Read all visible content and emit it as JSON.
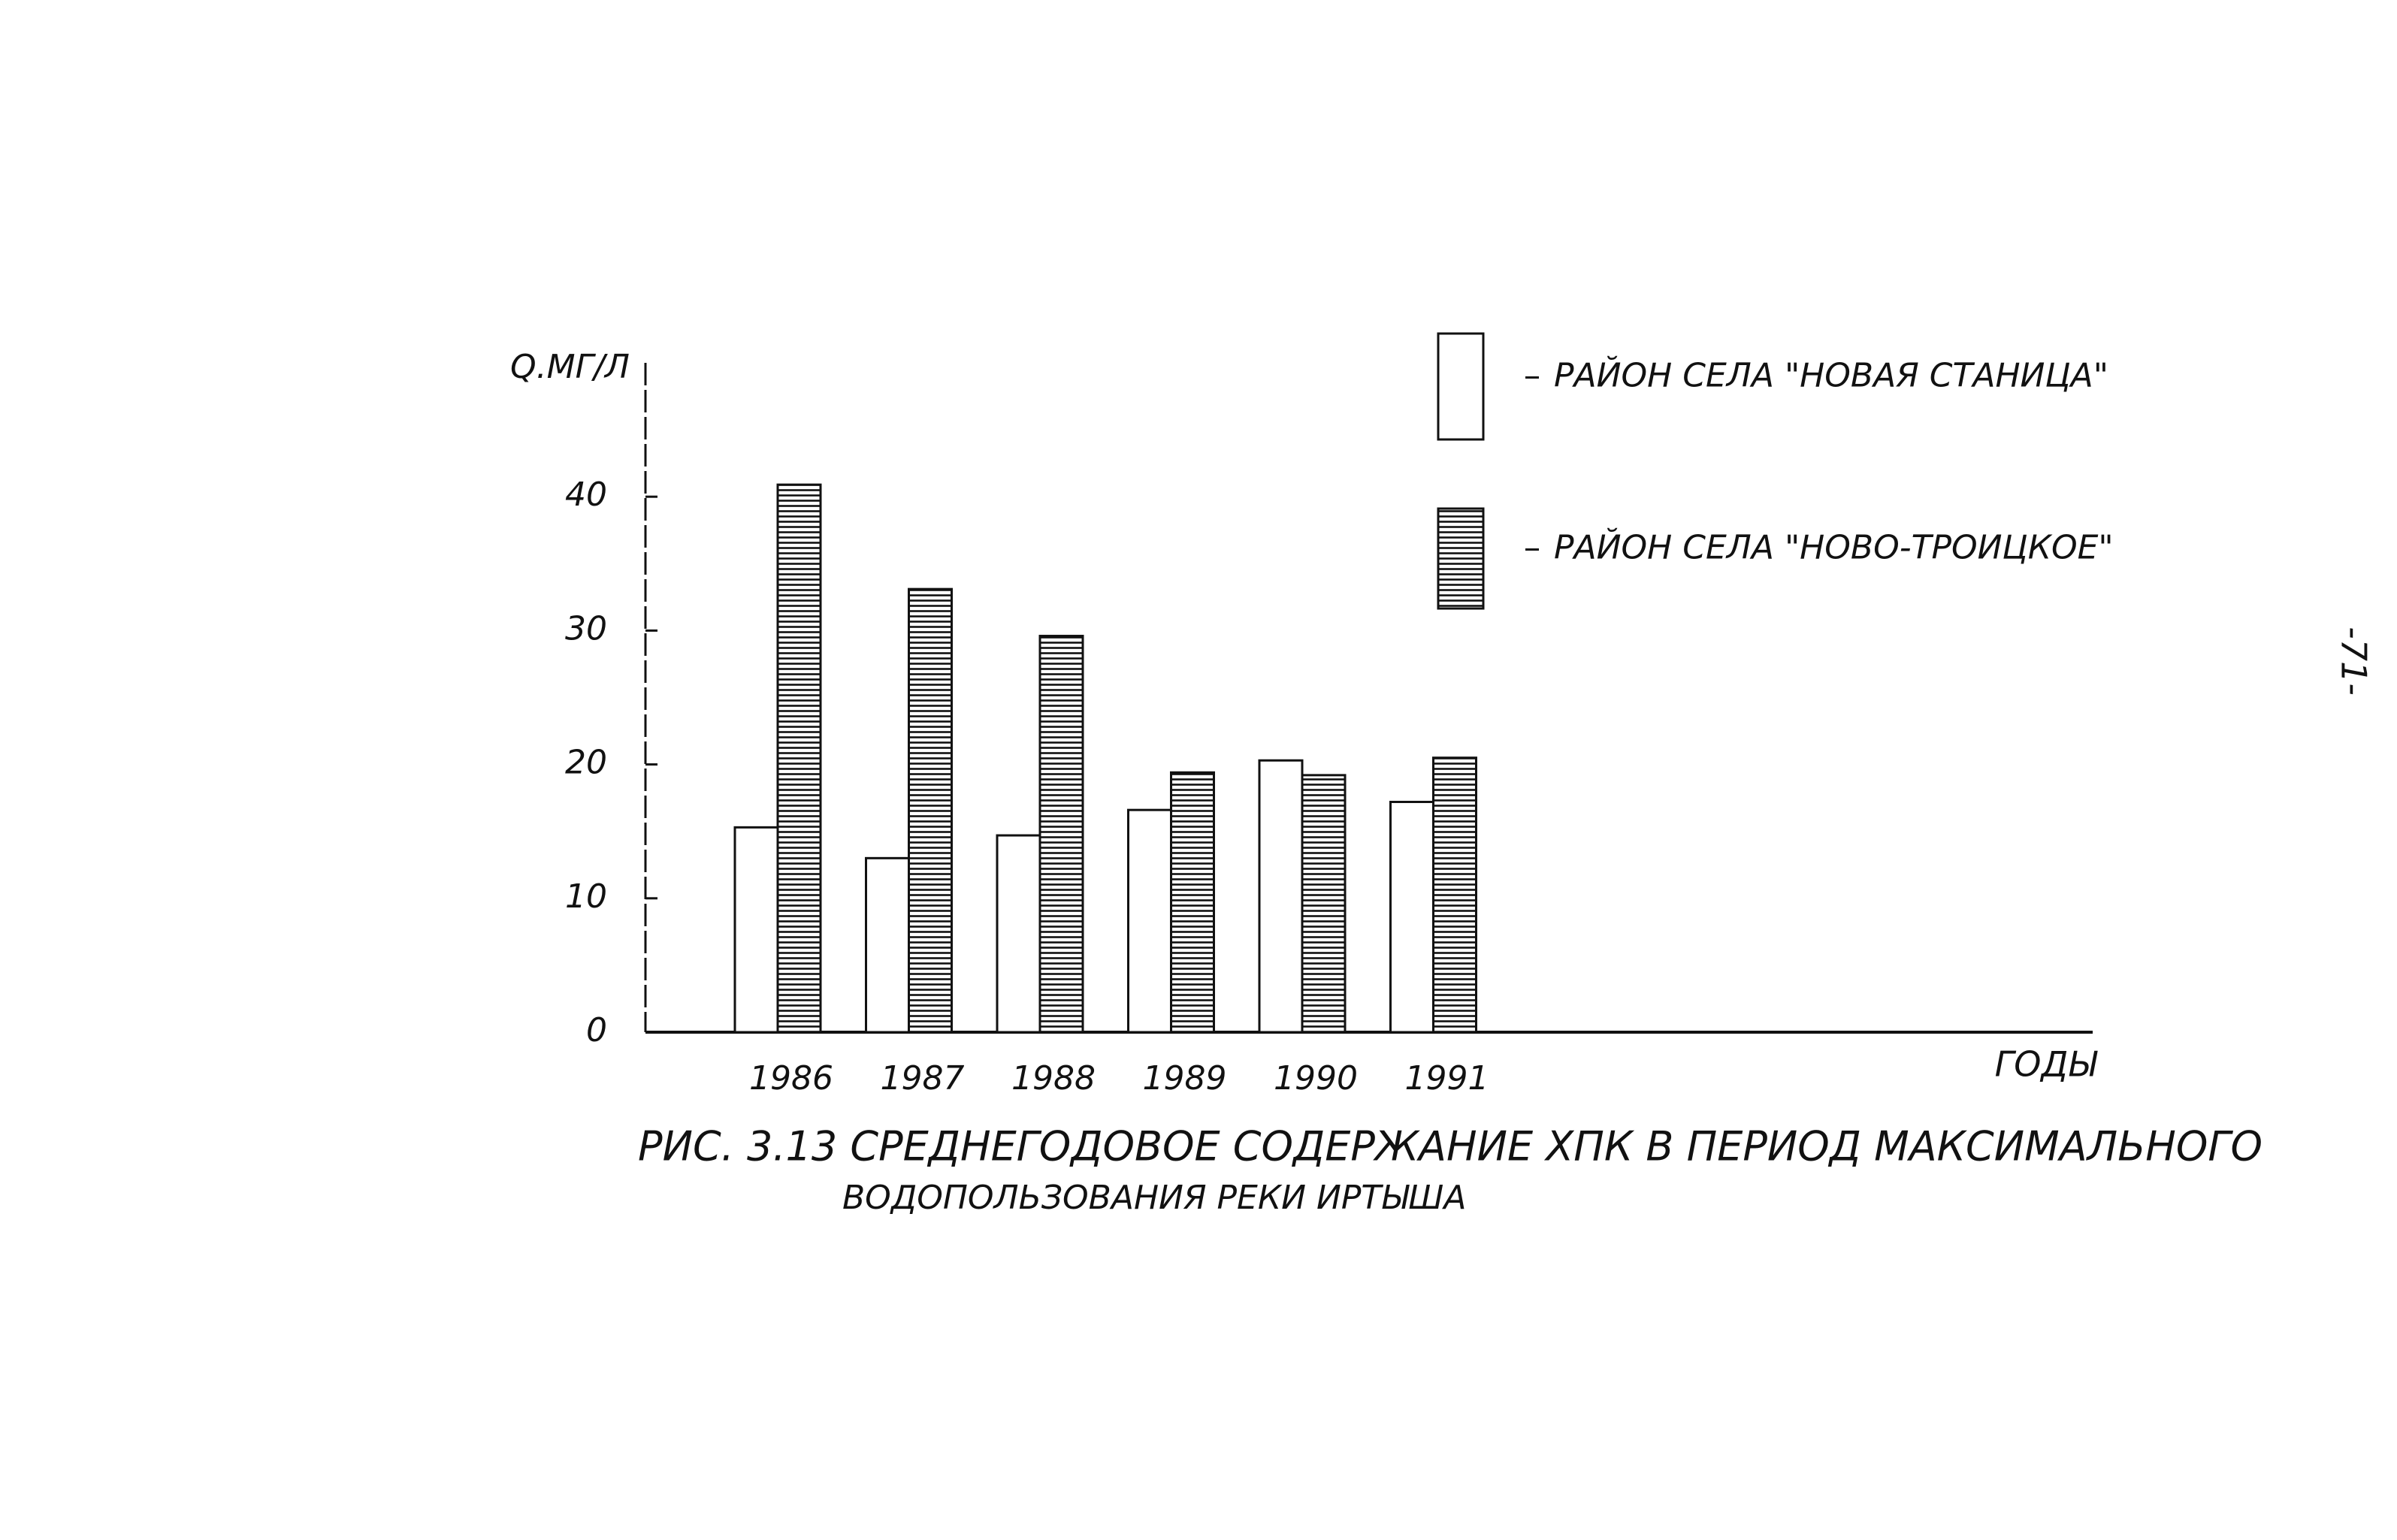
{
  "chart_data": {
    "type": "bar",
    "title": [
      "РИС. 3.13 СРЕДНЕГОДОВОЕ СОДЕРЖАНИЕ ХПК В ПЕРИОД МАКСИМАЛЬНОГО",
      "ВОДОПОЛЬЗОВАНИЯ РЕКИ ИРТЫША"
    ],
    "y_label": "Q.МГ/Л",
    "x_label": "ГОДЫ",
    "categories": [
      "1986",
      "1987",
      "1988",
      "1989",
      "1990",
      "1991"
    ],
    "series": [
      {
        "name": "РАЙОН СЕЛА \"НОВАЯ СТАНИЦА\"",
        "color": "#ffffff",
        "pattern": "none",
        "values": [
          15.3,
          13.0,
          14.7,
          16.6,
          20.3,
          17.2
        ]
      },
      {
        "name": "РАЙОН СЕЛА \"НОВО-ТРОИЦКОЕ\"",
        "color": "#ffffff",
        "pattern": "horizontal-lines",
        "values": [
          40.9,
          33.1,
          29.6,
          19.4,
          19.2,
          20.5
        ]
      }
    ],
    "ylim": [
      0,
      50
    ],
    "yticks": [
      0,
      10,
      20,
      30,
      40
    ],
    "grid": false,
    "legend": "top-right"
  },
  "page": {
    "number": "-71-"
  }
}
